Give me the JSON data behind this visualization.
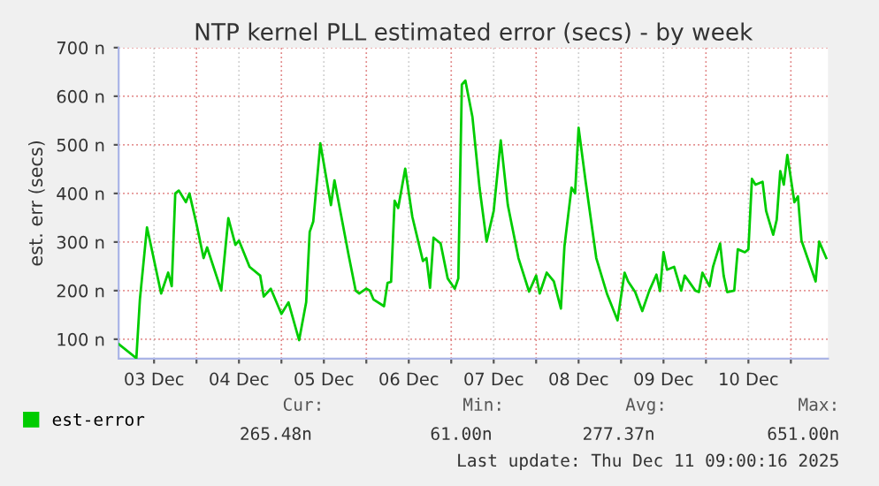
{
  "chart_data": {
    "type": "line",
    "title": "NTP kernel PLL estimated error (secs) - by week",
    "ylabel": "est. err (secs)",
    "x": [
      "2025-12-03T02:00",
      "2025-12-03T07:00",
      "2025-12-03T08:00",
      "2025-12-03T10:00",
      "2025-12-03T11:00",
      "2025-12-03T14:00",
      "2025-12-03T16:00",
      "2025-12-03T17:00",
      "2025-12-03T18:00",
      "2025-12-03T19:00",
      "2025-12-03T21:00",
      "2025-12-03T22:00",
      "2025-12-04T00:00",
      "2025-12-04T02:00",
      "2025-12-04T03:00",
      "2025-12-04T07:00",
      "2025-12-04T09:00",
      "2025-12-04T11:00",
      "2025-12-04T12:00",
      "2025-12-04T15:00",
      "2025-12-04T18:00",
      "2025-12-04T19:00",
      "2025-12-04T21:00",
      "2025-12-05T00:00",
      "2025-12-05T02:00",
      "2025-12-05T05:00",
      "2025-12-05T07:00",
      "2025-12-05T08:00",
      "2025-12-05T09:00",
      "2025-12-05T11:00",
      "2025-12-05T14:00",
      "2025-12-05T15:00",
      "2025-12-05T19:00",
      "2025-12-05T21:00",
      "2025-12-05T22:00",
      "2025-12-06T00:00",
      "2025-12-06T01:00",
      "2025-12-06T02:00",
      "2025-12-06T05:00",
      "2025-12-06T06:00",
      "2025-12-06T07:00",
      "2025-12-06T08:00",
      "2025-12-06T09:00",
      "2025-12-06T11:00",
      "2025-12-06T13:00",
      "2025-12-06T16:00",
      "2025-12-06T17:00",
      "2025-12-06T18:00",
      "2025-12-06T19:00",
      "2025-12-06T21:00",
      "2025-12-06T23:00",
      "2025-12-07T01:00",
      "2025-12-07T02:00",
      "2025-12-07T03:00",
      "2025-12-07T04:00",
      "2025-12-07T06:00",
      "2025-12-07T08:00",
      "2025-12-07T10:00",
      "2025-12-07T12:00",
      "2025-12-07T14:00",
      "2025-12-07T16:00",
      "2025-12-07T19:00",
      "2025-12-07T22:00",
      "2025-12-08T00:00",
      "2025-12-08T01:00",
      "2025-12-08T03:00",
      "2025-12-08T05:00",
      "2025-12-08T07:00",
      "2025-12-08T08:00",
      "2025-12-08T10:00",
      "2025-12-08T11:00",
      "2025-12-08T12:00",
      "2025-12-08T14:00",
      "2025-12-08T17:00",
      "2025-12-08T20:00",
      "2025-12-08T23:00",
      "2025-12-09T01:00",
      "2025-12-09T02:00",
      "2025-12-09T04:00",
      "2025-12-09T06:00",
      "2025-12-09T08:00",
      "2025-12-09T10:00",
      "2025-12-09T11:00",
      "2025-12-09T12:00",
      "2025-12-09T13:00",
      "2025-12-09T15:00",
      "2025-12-09T17:00",
      "2025-12-09T18:00",
      "2025-12-09T21:00",
      "2025-12-09T22:00",
      "2025-12-09T23:00",
      "2025-12-10T01:00",
      "2025-12-10T02:00",
      "2025-12-10T04:00",
      "2025-12-10T05:00",
      "2025-12-10T06:00",
      "2025-12-10T08:00",
      "2025-12-10T09:00",
      "2025-12-10T11:00",
      "2025-12-10T12:00",
      "2025-12-10T13:00",
      "2025-12-10T14:00",
      "2025-12-10T16:00",
      "2025-12-10T17:00",
      "2025-12-10T19:00",
      "2025-12-10T20:00",
      "2025-12-10T21:00",
      "2025-12-10T22:00",
      "2025-12-10T23:00",
      "2025-12-11T01:00",
      "2025-12-11T02:00",
      "2025-12-11T03:00",
      "2025-12-11T07:00",
      "2025-12-11T08:00",
      "2025-12-11T10:00"
    ],
    "series": [
      {
        "name": "est-error",
        "color": "#00cc00",
        "values": [
          90,
          61,
          182,
          330,
          297,
          194,
          237,
          209,
          400,
          406,
          382,
          400,
          337,
          267,
          289,
          200,
          349,
          294,
          303,
          249,
          231,
          188,
          204,
          152,
          176,
          98,
          176,
          321,
          342,
          503,
          376,
          427,
          273,
          200,
          194,
          204,
          200,
          182,
          168,
          216,
          218,
          385,
          370,
          451,
          352,
          261,
          267,
          206,
          309,
          297,
          225,
          204,
          225,
          624,
          632,
          557,
          412,
          301,
          364,
          509,
          376,
          267,
          198,
          231,
          194,
          237,
          219,
          163,
          291,
          412,
          400,
          535,
          424,
          267,
          194,
          139,
          237,
          219,
          197,
          158,
          200,
          233,
          199,
          279,
          243,
          249,
          200,
          231,
          200,
          197,
          237,
          209,
          249,
          297,
          231,
          197,
          200,
          285,
          279,
          285,
          430,
          418,
          424,
          364,
          315,
          346,
          446,
          418,
          479,
          382,
          394,
          303,
          219,
          301,
          267
        ]
      }
    ],
    "xlim": [
      "2025-12-03T02:00",
      "2025-12-11T10:30"
    ],
    "xticks": [
      {
        "value": "2025-12-03T12:00",
        "label": "03 Dec"
      },
      {
        "value": "2025-12-04T00:00",
        "label": null
      },
      {
        "value": "2025-12-04T12:00",
        "label": "04 Dec"
      },
      {
        "value": "2025-12-05T00:00",
        "label": null
      },
      {
        "value": "2025-12-05T12:00",
        "label": "05 Dec"
      },
      {
        "value": "2025-12-06T00:00",
        "label": null
      },
      {
        "value": "2025-12-06T12:00",
        "label": "06 Dec"
      },
      {
        "value": "2025-12-07T00:00",
        "label": null
      },
      {
        "value": "2025-12-07T12:00",
        "label": "07 Dec"
      },
      {
        "value": "2025-12-08T00:00",
        "label": null
      },
      {
        "value": "2025-12-08T12:00",
        "label": "08 Dec"
      },
      {
        "value": "2025-12-09T00:00",
        "label": null
      },
      {
        "value": "2025-12-09T12:00",
        "label": "09 Dec"
      },
      {
        "value": "2025-12-10T00:00",
        "label": null
      },
      {
        "value": "2025-12-10T12:00",
        "label": "10 Dec"
      },
      {
        "value": "2025-12-11T00:00",
        "label": null
      }
    ],
    "ylim": [
      60,
      700
    ],
    "yticks": [
      {
        "value": 100,
        "label": "100 n"
      },
      {
        "value": 200,
        "label": "200 n"
      },
      {
        "value": 300,
        "label": "300 n"
      },
      {
        "value": 400,
        "label": "400 n"
      },
      {
        "value": 500,
        "label": "500 n"
      },
      {
        "value": 600,
        "label": "600 n"
      },
      {
        "value": 700,
        "label": "700 n"
      }
    ],
    "grid": true,
    "legend": "bottom",
    "marker": "none",
    "line_style": "solid",
    "annotations": [
      "Cur:",
      "Min:",
      "Avg:",
      "Max:",
      "265.48n",
      "61.00n",
      "277.37n",
      "651.00n",
      "Last update: Thu Dec 11 09:00:16 2025"
    ]
  }
}
